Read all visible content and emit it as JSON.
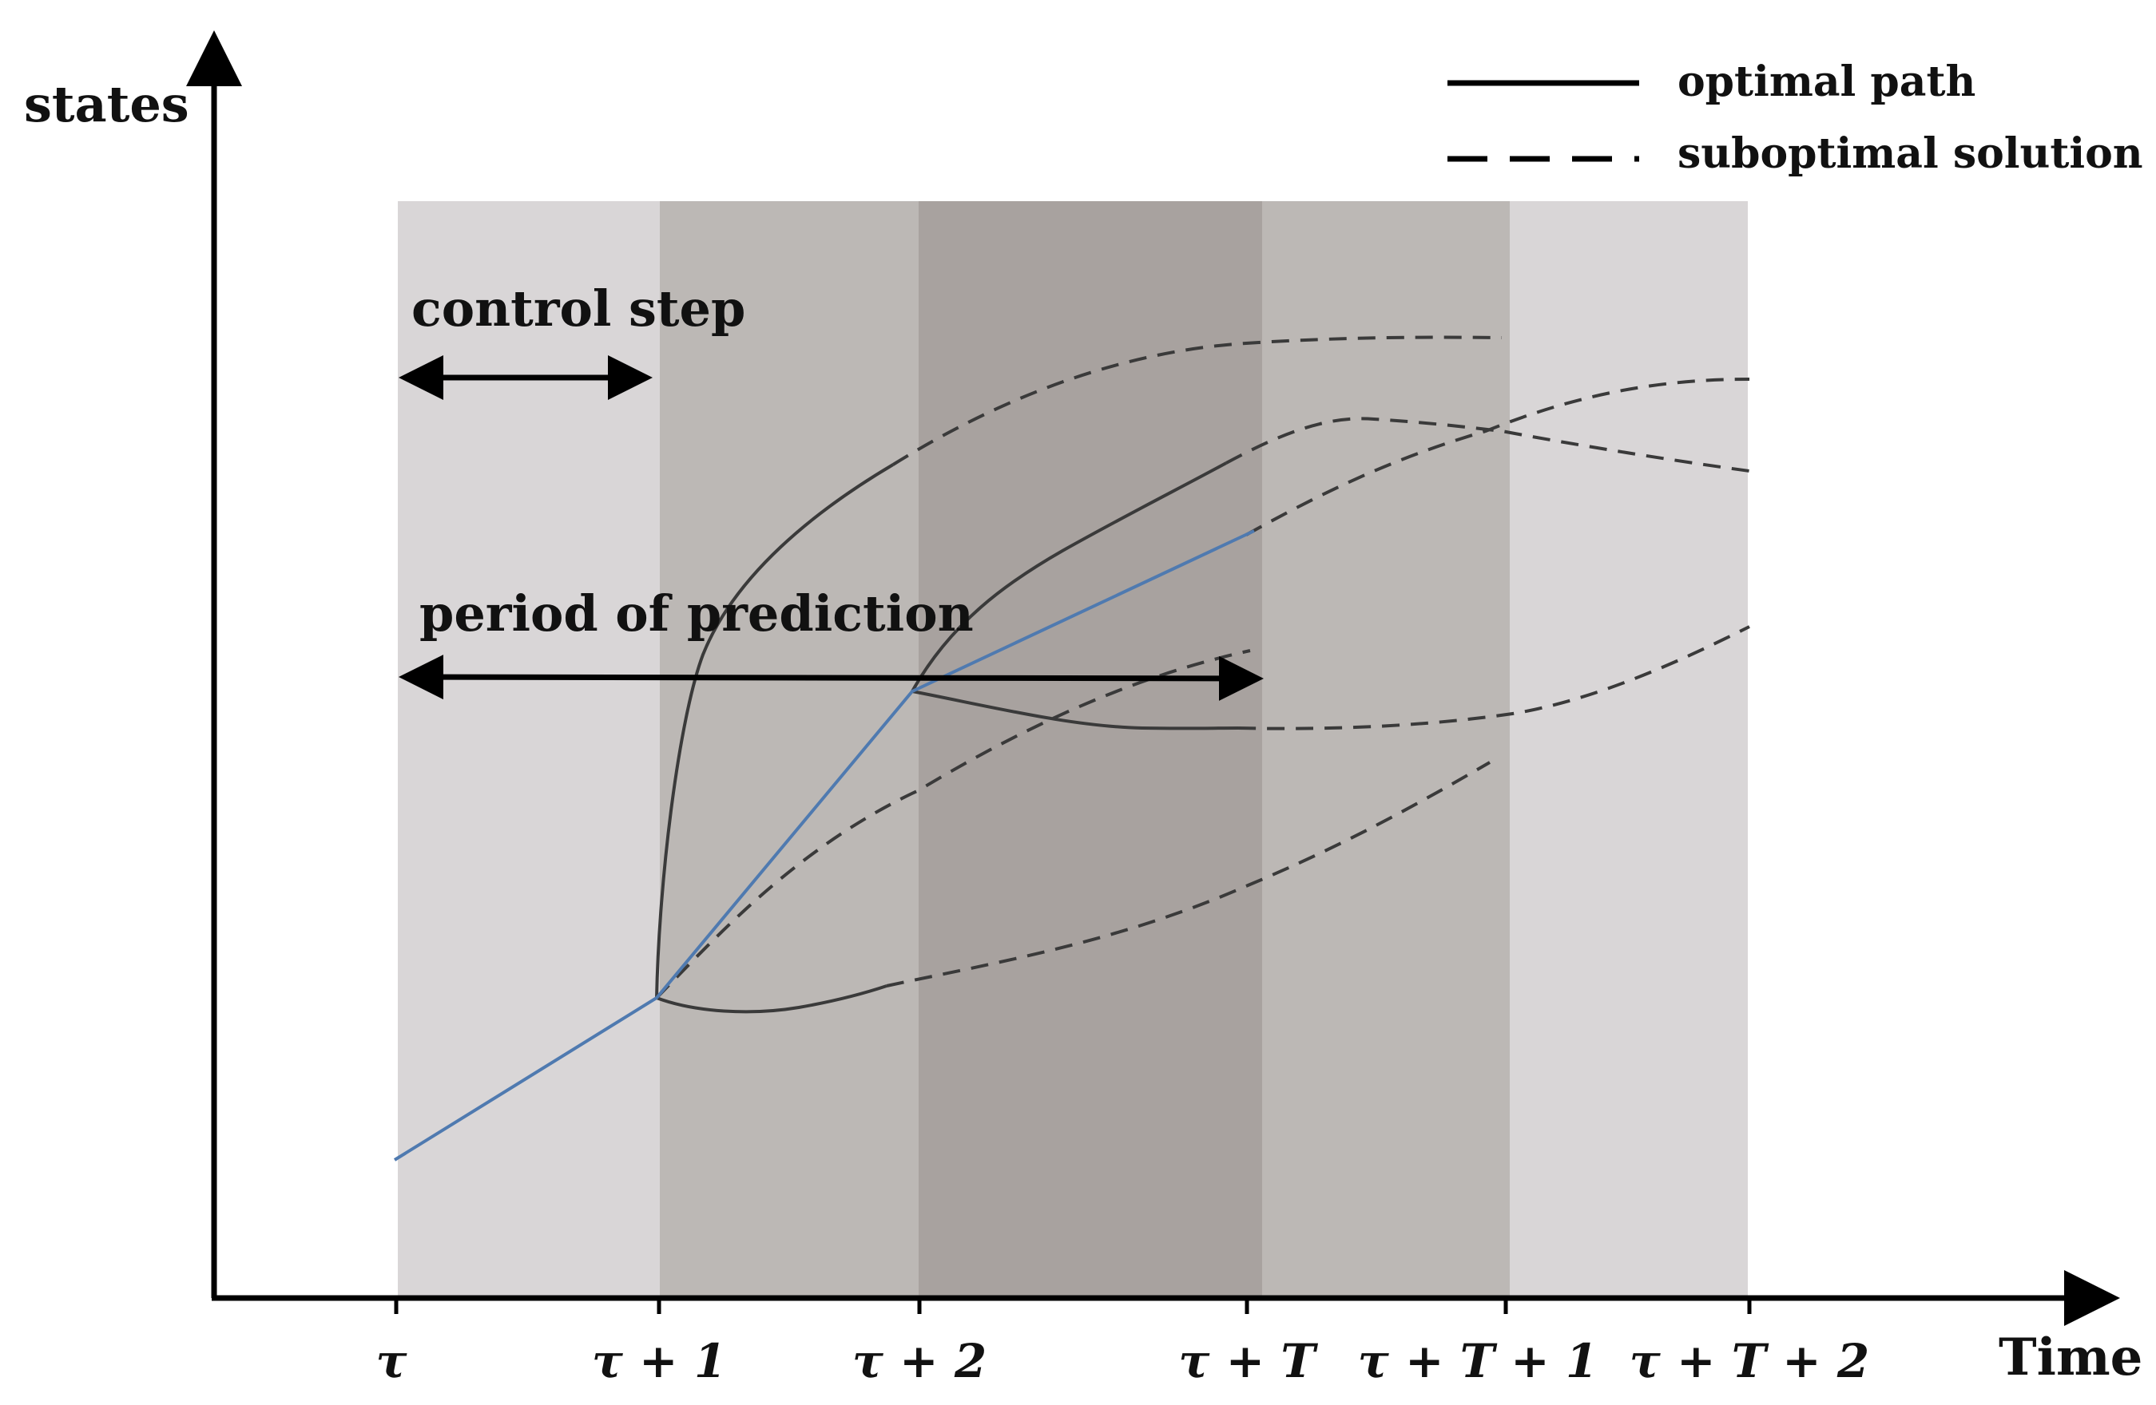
{
  "axes": {
    "y_label": "states",
    "x_label": "Time"
  },
  "x_ticks": [
    "τ",
    "τ + 1",
    "τ + 2",
    "τ + T",
    "τ + T + 1",
    "τ + T + 2"
  ],
  "legend": {
    "solid_label": "optimal path",
    "dashed_label": "suboptimal solution"
  },
  "annotations": {
    "control_step": "control step",
    "period_of_prediction": "period of prediction"
  },
  "colors": {
    "band_light": "#d9d6d7",
    "band_mid": "#bcb8b5",
    "band_dark": "#a8a29f",
    "actual_path": "#4f7ab0",
    "curves": "#3a3a3a",
    "axis": "#000000"
  }
}
